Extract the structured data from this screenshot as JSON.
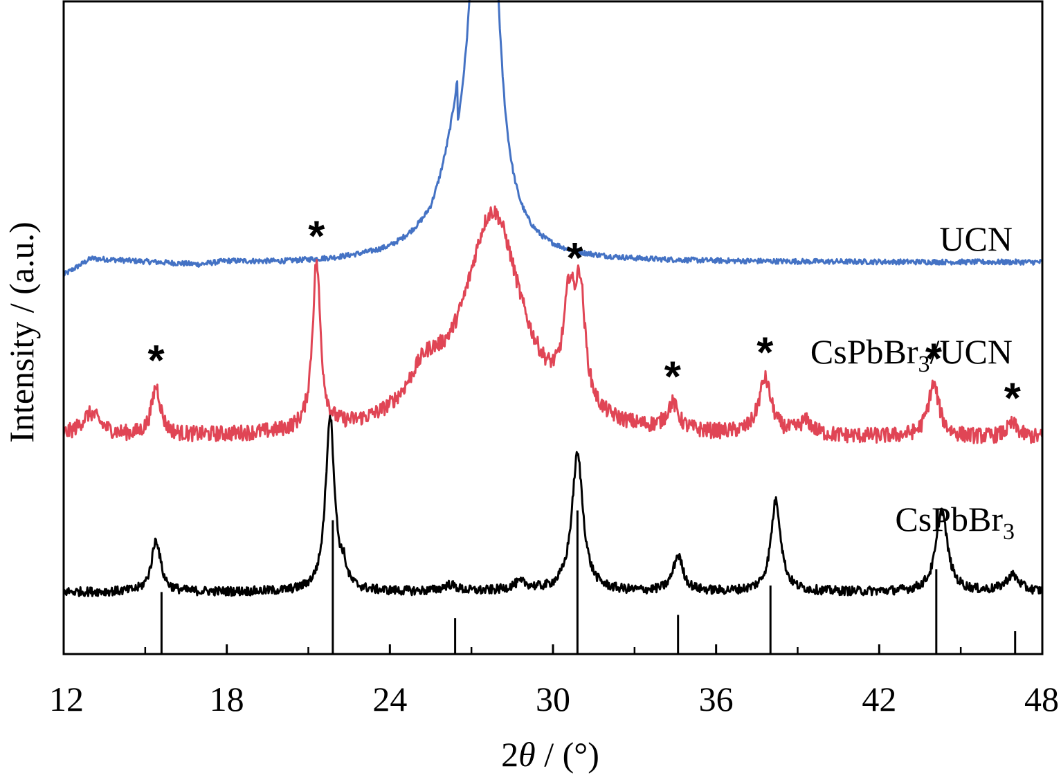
{
  "chart_data": {
    "type": "line",
    "xlabel": "2θ / (°)",
    "ylabel": "Intensity / (a.u.)",
    "xlim": [
      12,
      48
    ],
    "xticks": [
      12,
      18,
      24,
      30,
      36,
      42,
      48
    ],
    "minor_xticks": [
      15,
      21,
      27,
      33,
      39,
      45
    ],
    "grid": false,
    "legend": "none",
    "series": [
      {
        "name": "UCN",
        "color": "#4472c4",
        "baseline": 0.6,
        "noise": 0.004,
        "points": [
          [
            12,
            0.58
          ],
          [
            13,
            0.605
          ],
          [
            15,
            0.6
          ],
          [
            17,
            0.595
          ],
          [
            18,
            0.6
          ],
          [
            20,
            0.598
          ],
          [
            22,
            0.6
          ],
          [
            24,
            0.605
          ],
          [
            25.5,
            0.62
          ],
          [
            26.5,
            0.67
          ]
        ],
        "peaks": [
          {
            "center": 27.5,
            "height": 1.0,
            "width": 0.38
          },
          {
            "center": 26.8,
            "height": 0.1,
            "width": 0.9
          }
        ]
      },
      {
        "name": "CsPbBr3/UCN",
        "color": "#e04555",
        "baseline": 0.33,
        "noise": 0.012,
        "peaks": [
          {
            "center": 13.0,
            "height": 0.035,
            "width": 0.45
          },
          {
            "center": 15.4,
            "height": 0.075,
            "width": 0.2
          },
          {
            "center": 21.3,
            "height": 0.255,
            "width": 0.18
          },
          {
            "center": 27.8,
            "height": 0.34,
            "width": 1.3
          },
          {
            "center": 25.3,
            "height": 0.06,
            "width": 0.8
          },
          {
            "center": 30.6,
            "height": 0.15,
            "width": 0.25
          },
          {
            "center": 31.0,
            "height": 0.165,
            "width": 0.22
          },
          {
            "center": 34.4,
            "height": 0.04,
            "width": 0.25
          },
          {
            "center": 37.8,
            "height": 0.085,
            "width": 0.28
          },
          {
            "center": 39.3,
            "height": 0.02,
            "width": 0.3
          },
          {
            "center": 44.0,
            "height": 0.08,
            "width": 0.25
          },
          {
            "center": 46.9,
            "height": 0.02,
            "width": 0.25
          }
        ],
        "markers": [
          15.4,
          21.3,
          30.8,
          34.4,
          37.8,
          44.0,
          46.9
        ],
        "marker_symbol": "*"
      },
      {
        "name": "CsPbBr3",
        "color": "#000000",
        "baseline": 0.095,
        "noise": 0.007,
        "peaks": [
          {
            "center": 15.4,
            "height": 0.08,
            "width": 0.2
          },
          {
            "center": 21.8,
            "height": 0.27,
            "width": 0.2
          },
          {
            "center": 22.3,
            "height": 0.025,
            "width": 0.12
          },
          {
            "center": 26.2,
            "height": 0.01,
            "width": 0.3
          },
          {
            "center": 28.8,
            "height": 0.012,
            "width": 0.4
          },
          {
            "center": 30.9,
            "height": 0.21,
            "width": 0.25
          },
          {
            "center": 34.6,
            "height": 0.055,
            "width": 0.22
          },
          {
            "center": 38.2,
            "height": 0.14,
            "width": 0.22
          },
          {
            "center": 44.3,
            "height": 0.125,
            "width": 0.25
          },
          {
            "center": 46.9,
            "height": 0.025,
            "width": 0.3
          }
        ]
      }
    ],
    "reference_lines": {
      "color": "#000000",
      "bars": [
        {
          "x": 15.6,
          "value": 0.095
        },
        {
          "x": 21.9,
          "value": 0.205
        },
        {
          "x": 26.4,
          "value": 0.055
        },
        {
          "x": 30.9,
          "value": 0.22
        },
        {
          "x": 34.6,
          "value": 0.06
        },
        {
          "x": 38.0,
          "value": 0.105
        },
        {
          "x": 44.1,
          "value": 0.13
        },
        {
          "x": 47.0,
          "value": 0.035
        }
      ]
    },
    "series_labels": {
      "ucn": "UCN",
      "composite_main": "CsPbBr",
      "composite_sub": "3",
      "composite_tail": "/UCN",
      "cspbbr3_main": "CsPbBr",
      "cspbbr3_sub": "3"
    },
    "axis_text": {
      "x_pre": "2",
      "x_theta": "θ",
      "x_post": " / (°)",
      "y": "Intensity / (a.u.)"
    }
  }
}
